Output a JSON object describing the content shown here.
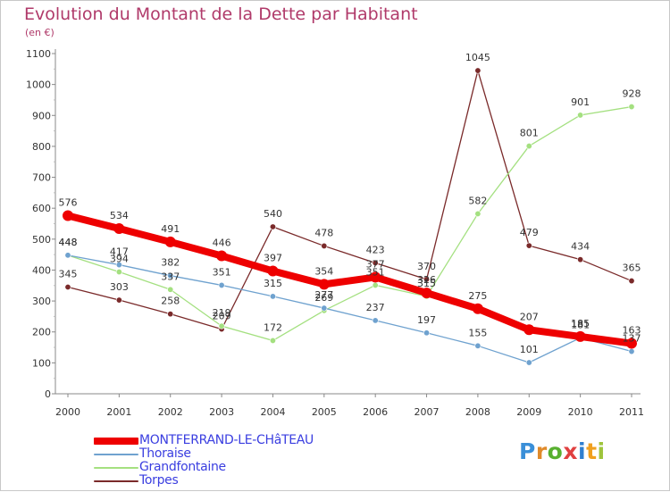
{
  "title": "Evolution du Montant de la Dette par Habitant",
  "subtitle": "(en €)",
  "logo": {
    "text": "Proxiti",
    "letters": [
      "P",
      "r",
      "o",
      "x",
      "i",
      "t",
      "i"
    ],
    "colors": [
      "#3a8fd8",
      "#e08a2a",
      "#58b030",
      "#e04040",
      "#2f7fd0",
      "#f0a020",
      "#9ec43c"
    ]
  },
  "chart_data": {
    "type": "line",
    "title": "Evolution du Montant de la Dette par Habitant",
    "ylabel": "(en €)",
    "x": [
      "2000",
      "2001",
      "2002",
      "2003",
      "2004",
      "2005",
      "2006",
      "2007",
      "2008",
      "2009",
      "2010",
      "2011"
    ],
    "ylim": [
      0,
      1100
    ],
    "yticks": [
      0,
      100,
      200,
      300,
      400,
      500,
      600,
      700,
      800,
      900,
      1000,
      1100
    ],
    "grid": false,
    "legend_position": "bottom-left",
    "series": [
      {
        "name": "MONTFERRAND-LE-CHâTEAU",
        "color": "#ee0000",
        "values": [
          576,
          534,
          491,
          446,
          397,
          354,
          377,
          326,
          275,
          207,
          185,
          163
        ]
      },
      {
        "name": "Thoraise",
        "color": "#6fa2cf",
        "values": [
          448,
          417,
          382,
          351,
          315,
          277,
          237,
          197,
          155,
          101,
          181,
          137
        ]
      },
      {
        "name": "Grandfontaine",
        "color": "#a4e080",
        "values": [
          448,
          394,
          337,
          219,
          172,
          269,
          351,
          315,
          582,
          801,
          901,
          928
        ]
      },
      {
        "name": "Torpes",
        "color": "#7a2a2a",
        "values": [
          345,
          303,
          258,
          209,
          540,
          478,
          423,
          370,
          1045,
          479,
          434,
          365
        ]
      }
    ]
  }
}
